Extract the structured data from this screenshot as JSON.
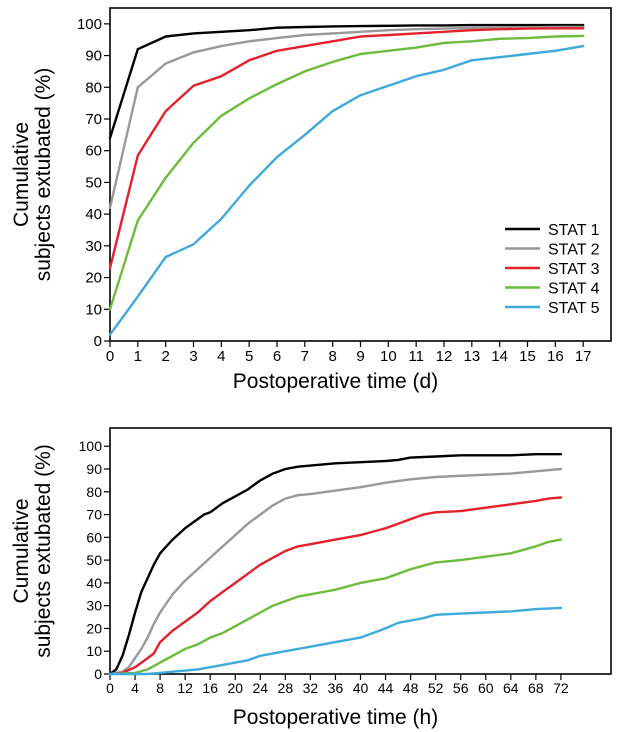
{
  "chart_data": [
    {
      "type": "line",
      "title": "",
      "xlabel": "Postoperative time (d)",
      "ylabel": [
        "Cumulative",
        "subjects extubated (%)"
      ],
      "xlim": [
        0,
        18
      ],
      "ylim": [
        0,
        105
      ],
      "xticks": [
        0,
        1,
        2,
        3,
        4,
        5,
        6,
        7,
        8,
        9,
        10,
        11,
        12,
        13,
        14,
        15,
        16,
        17
      ],
      "yticks": [
        0,
        10,
        20,
        30,
        40,
        50,
        60,
        70,
        80,
        90,
        100
      ],
      "legend_position": "bottom-right",
      "grid": false,
      "series": [
        {
          "name": "STAT 1",
          "color": "#000000",
          "x": [
            0,
            1,
            2,
            3,
            4,
            5,
            6,
            7,
            8,
            9,
            10,
            11,
            12,
            13,
            14,
            15,
            16,
            17
          ],
          "y": [
            64,
            92,
            96,
            97,
            97.5,
            98,
            98.8,
            99,
            99.2,
            99.3,
            99.4,
            99.5,
            99.5,
            99.6,
            99.6,
            99.6,
            99.6,
            99.6
          ]
        },
        {
          "name": "STAT 2",
          "color": "#999999",
          "x": [
            0,
            1,
            2,
            3,
            4,
            5,
            6,
            7,
            8,
            9,
            10,
            11,
            12,
            13,
            14,
            15,
            16,
            17
          ],
          "y": [
            42,
            80,
            87.5,
            91,
            93,
            94.5,
            95.5,
            96.5,
            97,
            97.5,
            98,
            98.3,
            98.5,
            98.7,
            98.8,
            98.9,
            99,
            99
          ]
        },
        {
          "name": "STAT 3",
          "color": "#e3212b",
          "x": [
            0,
            1,
            2,
            3,
            4,
            5,
            6,
            7,
            8,
            9,
            10,
            11,
            12,
            13,
            14,
            15,
            16,
            17
          ],
          "y": [
            23,
            58.5,
            72.5,
            80.5,
            83.5,
            88.5,
            91.5,
            93,
            94.5,
            96,
            96.5,
            97,
            97.5,
            98,
            98.3,
            98.5,
            98.6,
            98.6
          ]
        },
        {
          "name": "STAT 4",
          "color": "#6cbb3c",
          "x": [
            0,
            1,
            2,
            3,
            4,
            5,
            6,
            7,
            8,
            9,
            10,
            11,
            12,
            13,
            14,
            15,
            16,
            17
          ],
          "y": [
            10,
            38,
            51.5,
            62.5,
            71,
            76.5,
            81,
            85,
            88,
            90.5,
            91.5,
            92.5,
            94,
            94.5,
            95.3,
            95.5,
            96,
            96.2
          ]
        },
        {
          "name": "STAT 5",
          "color": "#3fa9dc",
          "x": [
            0,
            1,
            2,
            3,
            4,
            5,
            6,
            7,
            8,
            9,
            10,
            11,
            12,
            13,
            14,
            15,
            16,
            17
          ],
          "y": [
            2,
            14,
            26.5,
            30.5,
            38.5,
            49,
            58,
            65,
            72.5,
            77.5,
            80.5,
            83.5,
            85.5,
            88.5,
            89.5,
            90.5,
            91.5,
            93
          ]
        }
      ]
    },
    {
      "type": "line",
      "title": "",
      "xlabel": "Postoperative time (h)",
      "ylabel": [
        "Cumulative",
        "subjects extubated (%)"
      ],
      "xlim": [
        0,
        80
      ],
      "ylim": [
        0,
        108
      ],
      "xticks": [
        0,
        4,
        8,
        12,
        16,
        20,
        24,
        28,
        32,
        36,
        40,
        44,
        48,
        52,
        56,
        60,
        64,
        68,
        72
      ],
      "yticks": [
        0,
        10,
        20,
        30,
        40,
        50,
        60,
        70,
        80,
        90,
        100
      ],
      "grid": false,
      "series": [
        {
          "name": "STAT 1",
          "color": "#000000",
          "x": [
            0,
            1,
            2,
            3,
            4,
            5,
            6,
            7,
            8,
            10,
            12,
            14,
            15,
            16,
            18,
            20,
            22,
            23,
            24,
            26,
            28,
            30,
            32,
            36,
            40,
            44,
            46,
            48,
            52,
            56,
            60,
            64,
            68,
            72
          ],
          "y": [
            0,
            2,
            8,
            17,
            27,
            36,
            42,
            48,
            53,
            59,
            64,
            68,
            70,
            71,
            75,
            78,
            81,
            83,
            85,
            88,
            90,
            91,
            91.5,
            92.5,
            93,
            93.5,
            94,
            95,
            95.5,
            96,
            96,
            96,
            96.5,
            96.5
          ]
        },
        {
          "name": "STAT 2",
          "color": "#999999",
          "x": [
            0,
            2,
            3,
            4,
            5,
            6,
            7,
            8,
            10,
            12,
            14,
            16,
            18,
            20,
            22,
            24,
            26,
            28,
            30,
            32,
            36,
            40,
            44,
            48,
            52,
            56,
            60,
            64,
            68,
            72
          ],
          "y": [
            0,
            1,
            3,
            7,
            11,
            16,
            22,
            27,
            35,
            41,
            46,
            51,
            56,
            61,
            66,
            70,
            74,
            77,
            78.5,
            79,
            80.5,
            82,
            84,
            85.5,
            86.5,
            87,
            87.5,
            88,
            89,
            90
          ]
        },
        {
          "name": "STAT 3",
          "color": "#e3212b",
          "x": [
            0,
            2,
            4,
            6,
            7,
            8,
            10,
            12,
            14,
            16,
            18,
            20,
            22,
            24,
            26,
            28,
            30,
            32,
            36,
            40,
            44,
            46,
            48,
            50,
            52,
            56,
            60,
            64,
            68,
            70,
            72
          ],
          "y": [
            0,
            0.5,
            3,
            7,
            9,
            14,
            19,
            23,
            27,
            32,
            36,
            40,
            44,
            48,
            51,
            54,
            56,
            57,
            59,
            61,
            64,
            66,
            68,
            70,
            71,
            71.5,
            73,
            74.5,
            76,
            77,
            77.5
          ]
        },
        {
          "name": "STAT 4",
          "color": "#6cbb3c",
          "x": [
            0,
            4,
            6,
            8,
            10,
            12,
            14,
            16,
            18,
            20,
            22,
            24,
            26,
            28,
            30,
            32,
            34,
            36,
            40,
            44,
            48,
            52,
            56,
            60,
            64,
            68,
            70,
            72
          ],
          "y": [
            0,
            0.5,
            2,
            5,
            8,
            11,
            13,
            16,
            18,
            21,
            24,
            27,
            30,
            32,
            34,
            35,
            36,
            37,
            40,
            42,
            46,
            49,
            50,
            51.5,
            53,
            56,
            58,
            59
          ]
        },
        {
          "name": "STAT 5",
          "color": "#3fa9dc",
          "x": [
            0,
            6,
            8,
            10,
            12,
            14,
            16,
            18,
            20,
            22,
            24,
            28,
            32,
            36,
            40,
            44,
            46,
            48,
            50,
            52,
            56,
            60,
            64,
            68,
            72
          ],
          "y": [
            0,
            0,
            0.5,
            1,
            1.5,
            2,
            3,
            4,
            5,
            6,
            8,
            10,
            12,
            14,
            16,
            20,
            22.5,
            23.5,
            24.5,
            26,
            26.5,
            27,
            27.5,
            28.5,
            29
          ]
        }
      ]
    }
  ]
}
